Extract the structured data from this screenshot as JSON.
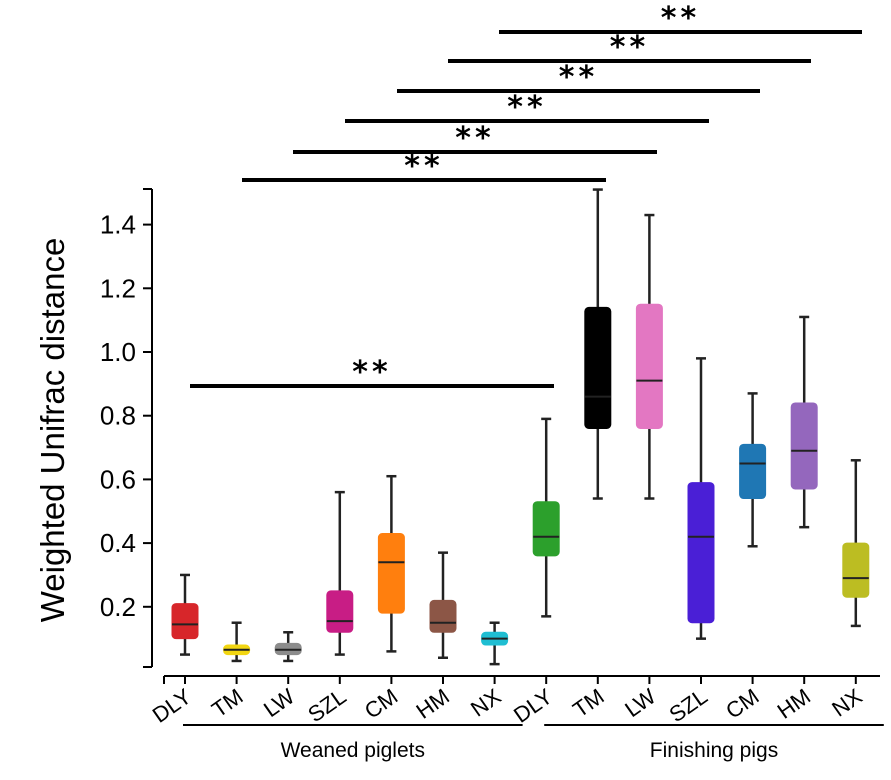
{
  "chart_data": {
    "type": "box",
    "ylabel": "Weighted Unifrac distance",
    "xlabel": "",
    "ylim": [
      0,
      1.5
    ],
    "yticks": [
      "0.2",
      "0.4",
      "0.6",
      "0.8",
      "1.0",
      "1.2",
      "1.4"
    ],
    "groups": [
      {
        "name": "Weaned piglets",
        "categories": [
          "DLY",
          "TM",
          "LW",
          "SZL",
          "CM",
          "HM",
          "NX"
        ]
      },
      {
        "name": "Finishing pigs",
        "categories": [
          "DLY",
          "TM",
          "LW",
          "SZL",
          "CM",
          "HM",
          "NX"
        ]
      }
    ],
    "boxes": [
      {
        "label": "DLY",
        "group": "Weaned piglets",
        "color": "#d7262a",
        "min": 0.05,
        "q1": 0.1,
        "median": 0.145,
        "q3": 0.21,
        "max": 0.3
      },
      {
        "label": "TM",
        "group": "Weaned piglets",
        "color": "#f2d612",
        "min": 0.03,
        "q1": 0.05,
        "median": 0.065,
        "q3": 0.08,
        "max": 0.15
      },
      {
        "label": "LW",
        "group": "Weaned piglets",
        "color": "#8c8c8c",
        "min": 0.03,
        "q1": 0.05,
        "median": 0.065,
        "q3": 0.085,
        "max": 0.12
      },
      {
        "label": "SZL",
        "group": "Weaned piglets",
        "color": "#c81d85",
        "min": 0.05,
        "q1": 0.12,
        "median": 0.155,
        "q3": 0.25,
        "max": 0.56
      },
      {
        "label": "CM",
        "group": "Weaned piglets",
        "color": "#ff7f0e",
        "min": 0.06,
        "q1": 0.18,
        "median": 0.34,
        "q3": 0.43,
        "max": 0.61
      },
      {
        "label": "HM",
        "group": "Weaned piglets",
        "color": "#8c5646",
        "min": 0.04,
        "q1": 0.12,
        "median": 0.15,
        "q3": 0.22,
        "max": 0.37
      },
      {
        "label": "NX",
        "group": "Weaned piglets",
        "color": "#1fbed2",
        "min": 0.02,
        "q1": 0.08,
        "median": 0.1,
        "q3": 0.12,
        "max": 0.15
      },
      {
        "label": "DLY",
        "group": "Finishing pigs",
        "color": "#2ca02c",
        "min": 0.17,
        "q1": 0.36,
        "median": 0.42,
        "q3": 0.53,
        "max": 0.79
      },
      {
        "label": "TM",
        "group": "Finishing pigs",
        "color": "#000000",
        "min": 0.54,
        "q1": 0.76,
        "median": 0.86,
        "q3": 1.14,
        "max": 1.51
      },
      {
        "label": "LW",
        "group": "Finishing pigs",
        "color": "#e377c2",
        "min": 0.54,
        "q1": 0.76,
        "median": 0.91,
        "q3": 1.15,
        "max": 1.43
      },
      {
        "label": "SZL",
        "group": "Finishing pigs",
        "color": "#4a1fd6",
        "min": 0.1,
        "q1": 0.15,
        "median": 0.42,
        "q3": 0.59,
        "max": 0.98
      },
      {
        "label": "CM",
        "group": "Finishing pigs",
        "color": "#1f77b4",
        "min": 0.39,
        "q1": 0.54,
        "median": 0.65,
        "q3": 0.71,
        "max": 0.87
      },
      {
        "label": "HM",
        "group": "Finishing pigs",
        "color": "#9467bd",
        "min": 0.45,
        "q1": 0.57,
        "median": 0.69,
        "q3": 0.84,
        "max": 1.11
      },
      {
        "label": "NX",
        "group": "Finishing pigs",
        "color": "#bcbd22",
        "min": 0.14,
        "q1": 0.23,
        "median": 0.29,
        "q3": 0.4,
        "max": 0.66
      }
    ],
    "significance": [
      {
        "from": 0,
        "to": 7,
        "label": "**"
      },
      {
        "from": 1,
        "to": 8,
        "label": "**"
      },
      {
        "from": 2,
        "to": 9,
        "label": "**"
      },
      {
        "from": 3,
        "to": 10,
        "label": "**"
      },
      {
        "from": 4,
        "to": 11,
        "label": "**"
      },
      {
        "from": 5,
        "to": 12,
        "label": "**"
      },
      {
        "from": 6,
        "to": 13,
        "label": "**"
      }
    ]
  }
}
